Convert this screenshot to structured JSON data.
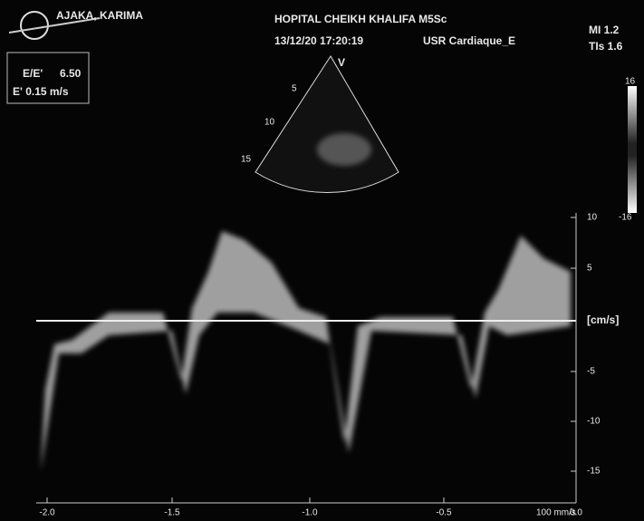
{
  "header": {
    "patient": "AJAKA, KARIMA",
    "hospital": "HOPITAL CHEIKH KHALIFA M5Sc",
    "datetime": "13/12/20 17:20:19",
    "preset": "USR Cardiaque_E",
    "mi": "MI 1.2",
    "tis": "TIs 1.6"
  },
  "measurements": {
    "ratio_label": "E/E'",
    "ratio_value": "6.50",
    "e_prime": "E' 0.15 m/s"
  },
  "sector": {
    "mode": "V",
    "depths": [
      "5",
      "10",
      "15"
    ]
  },
  "color_scale": {
    "max": "16",
    "min": "-16"
  },
  "velocity_axis": {
    "ticks": [
      "10",
      "5",
      "-5",
      "-10",
      "-15"
    ],
    "unit": "[cm/s]"
  },
  "time_axis": {
    "ticks": [
      "-2.0",
      "-1.5",
      "-1.0",
      "-0.5",
      "0.0"
    ],
    "speed": "100 mm/s"
  }
}
